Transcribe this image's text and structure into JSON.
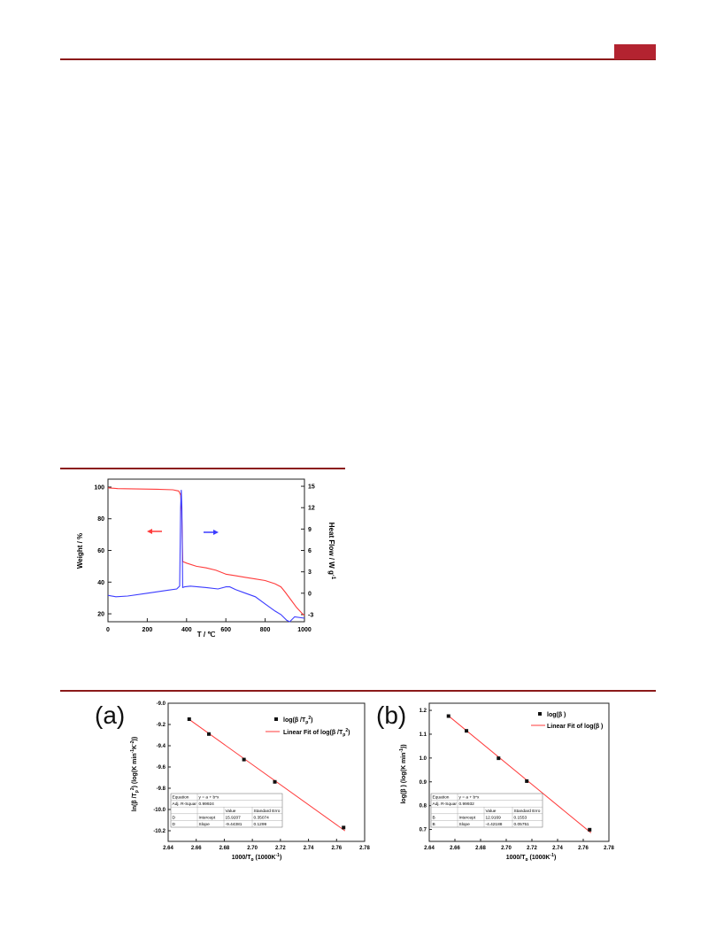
{
  "colors": {
    "accent_rule": "#8b1a1a",
    "header_tab": "#b32330",
    "weight_curve": "#ff3b3b",
    "heat_curve": "#3b3bff",
    "fit_line": "#ff3b3b",
    "points": "#111111"
  },
  "figure_tga": {
    "ylabel_left": "Weight / %",
    "ylabel_right_main": "Heat Flow / W g",
    "ylabel_right_sup": "-1",
    "xlabel": "T / ℃",
    "x_ticks": [
      "0",
      "200",
      "400",
      "600",
      "800",
      "1000"
    ],
    "y_left_ticks": [
      "100",
      "80",
      "60",
      "40",
      "20"
    ],
    "y_right_ticks": [
      "15",
      "12",
      "9",
      "6",
      "3",
      "0",
      "-3"
    ]
  },
  "figure_a": {
    "panel_label": "(a)",
    "ylabel": "ln(β /T_p²) (log(K min⁻¹K⁻²))",
    "xlabel": "1000/T_p (1000K⁻¹)",
    "x_ticks": [
      "2.64",
      "2.66",
      "2.68",
      "2.70",
      "2.72",
      "2.74",
      "2.76",
      "2.78"
    ],
    "y_ticks": [
      "-9.0",
      "-9.2",
      "-9.4",
      "-9.6",
      "-9.8",
      "-10.0",
      "-10.2"
    ],
    "legend_points": "log(β /T_p²)",
    "legend_fit": "Linear Fit of log(β /T_p²)",
    "table": {
      "row1": [
        "Equation",
        "y = a + b*x",
        "",
        ""
      ],
      "row2": [
        "Adj. R-Squar",
        "0.99924",
        "",
        ""
      ],
      "row3": [
        "",
        "",
        "Value",
        "Standard Erro"
      ],
      "row4": [
        "D",
        "Intercept",
        "15.9207",
        "0.35074"
      ],
      "row5": [
        "D",
        "Slope",
        "-9.44381",
        "0.1299"
      ]
    }
  },
  "figure_b": {
    "panel_label": "(b)",
    "ylabel": "log(β ) (log(K min⁻¹))",
    "xlabel": "1000/T_p (1000K⁻¹)",
    "x_ticks": [
      "2.64",
      "2.66",
      "2.68",
      "2.70",
      "2.72",
      "2.74",
      "2.76",
      "2.78"
    ],
    "y_ticks": [
      "1.2",
      "1.1",
      "1.0",
      "0.9",
      "0.8",
      "0.7"
    ],
    "legend_points": "log(β )",
    "legend_fit": "Linear Fit of log(β )",
    "table": {
      "row1": [
        "Equation",
        "y = a + b*x",
        "",
        ""
      ],
      "row2": [
        "Adj. R-Squar",
        "0.99932",
        "",
        ""
      ],
      "row3": [
        "",
        "",
        "Value",
        "Standard Erro"
      ],
      "row4": [
        "B",
        "Intercept",
        "12.9169",
        "0.1553"
      ],
      "row5": [
        "B",
        "Slope",
        "-4.42188",
        "0.05751"
      ]
    }
  },
  "chart_data": [
    {
      "type": "line",
      "xlabel": "T / ℃",
      "ylabel": "Weight / %",
      "y2label": "Heat Flow / W g-1",
      "xlim": [
        0,
        1000
      ],
      "ylim": [
        15,
        105
      ],
      "y2lim": [
        -4,
        16
      ],
      "series": [
        {
          "axis": "left",
          "x": [
            0,
            50,
            150,
            250,
            330,
            360,
            370,
            375,
            380,
            400,
            450,
            500,
            550,
            600,
            650,
            700,
            750,
            800,
            850,
            880,
            900,
            930,
            960,
            990,
            1000
          ],
          "values": [
            99.5,
            99,
            98.8,
            98.6,
            98.3,
            97.5,
            95,
            85,
            53,
            52,
            50,
            49,
            47.5,
            45,
            44,
            43,
            42,
            41,
            39,
            37,
            34,
            29,
            24,
            20,
            19
          ]
        },
        {
          "axis": "right",
          "x": [
            0,
            40,
            100,
            200,
            300,
            350,
            365,
            370,
            373,
            376,
            380,
            390,
            420,
            500,
            560,
            600,
            620,
            650,
            700,
            750,
            800,
            850,
            880,
            910,
            925,
            950,
            1000
          ],
          "values": [
            -0.3,
            -0.5,
            -0.4,
            0,
            0.4,
            0.6,
            1,
            12,
            14.5,
            12,
            0.8,
            0.9,
            1.0,
            0.8,
            0.6,
            0.9,
            0.9,
            0.5,
            0,
            -0.5,
            -1.5,
            -2.5,
            -3,
            -3.8,
            -4,
            -3.3,
            -3.5
          ]
        }
      ]
    },
    {
      "type": "scatter",
      "xlabel": "1000/T_p (1000K-1)",
      "ylabel": "ln(β /T_p2) (log(K min-1K-2))",
      "xlim": [
        2.64,
        2.78
      ],
      "ylim": [
        -10.3,
        -9.0
      ],
      "x": [
        2.655,
        2.669,
        2.694,
        2.716,
        2.765
      ],
      "y": [
        -9.15,
        -9.29,
        -9.53,
        -9.74,
        -10.17
      ],
      "fit": {
        "intercept": 15.9207,
        "slope": -9.44381,
        "r2": 0.99924
      }
    },
    {
      "type": "scatter",
      "xlabel": "1000/T_p (1000K-1)",
      "ylabel": "log(β ) (log(K min-1))",
      "xlim": [
        2.64,
        2.78
      ],
      "ylim": [
        0.65,
        1.23
      ],
      "x": [
        2.655,
        2.669,
        2.694,
        2.716,
        2.765
      ],
      "y": [
        1.176,
        1.114,
        0.999,
        0.903,
        0.699
      ],
      "fit": {
        "intercept": 12.9169,
        "slope": -4.42188,
        "r2": 0.99932
      }
    }
  ]
}
